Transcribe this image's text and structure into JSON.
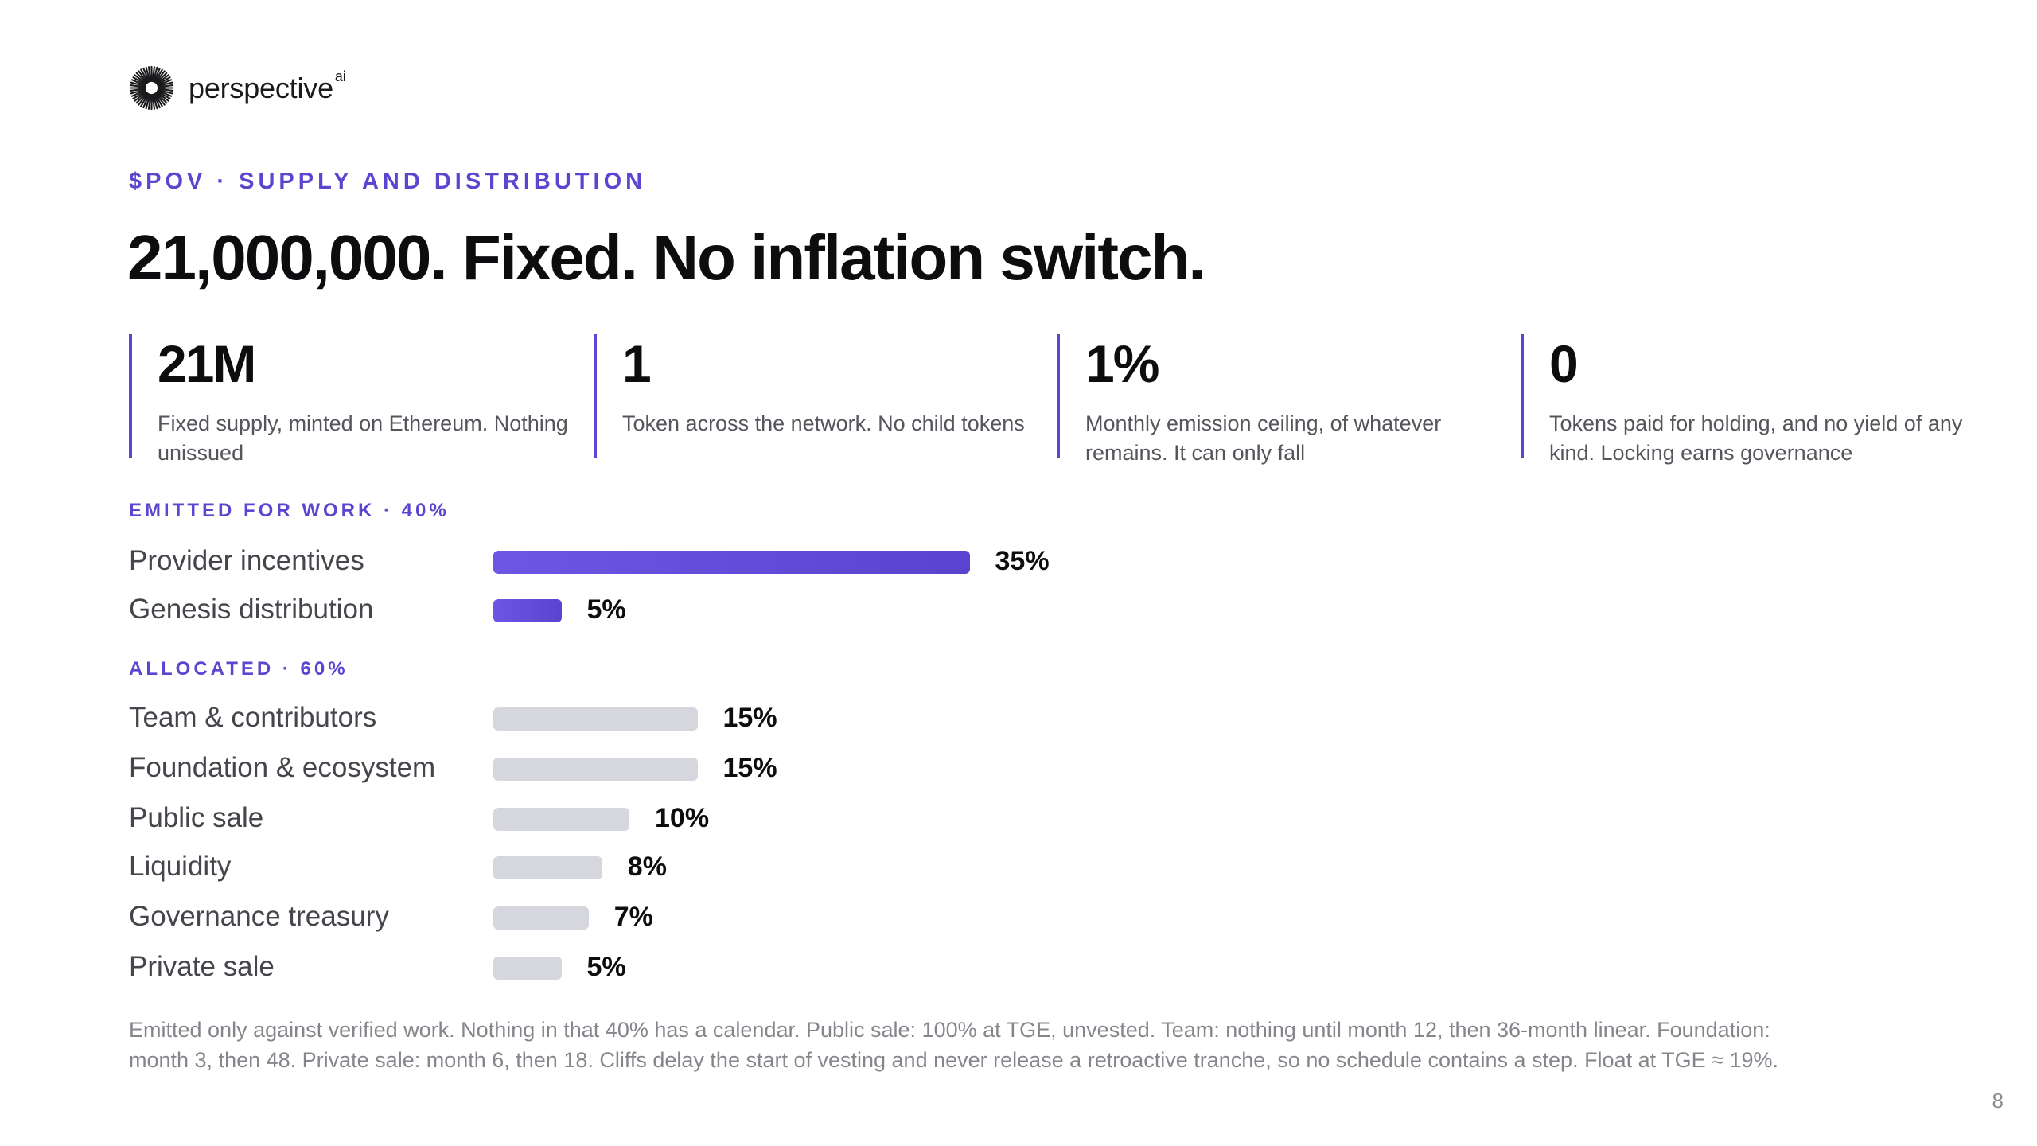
{
  "brand": {
    "name": "perspective",
    "superscript": "ai"
  },
  "eyebrow": "$POV · SUPPLY AND DISTRIBUTION",
  "headline": "21,000,000. Fixed. No inflation switch.",
  "stats": [
    {
      "value": "21M",
      "description": "Fixed supply, minted on Ethereum. Nothing unissued"
    },
    {
      "value": "1",
      "description": "Token across the network. No child tokens"
    },
    {
      "value": "1%",
      "description": "Monthly emission ceiling, of whatever remains. It can only fall"
    },
    {
      "value": "0",
      "description": "Tokens paid for holding, and no yield of any kind. Locking earns governance"
    }
  ],
  "groups": {
    "work": {
      "label": "EMITTED FOR WORK · 40%",
      "items": [
        {
          "label": "Provider incentives",
          "value": "35%",
          "percent": 35
        },
        {
          "label": "Genesis distribution",
          "value": "5%",
          "percent": 5
        }
      ]
    },
    "allocated": {
      "label": "ALLOCATED · 60%",
      "items": [
        {
          "label": "Team & contributors",
          "value": "15%",
          "percent": 15
        },
        {
          "label": "Foundation & ecosystem",
          "value": "15%",
          "percent": 15
        },
        {
          "label": "Public sale",
          "value": "10%",
          "percent": 10
        },
        {
          "label": "Liquidity",
          "value": "8%",
          "percent": 8
        },
        {
          "label": "Governance treasury",
          "value": "7%",
          "percent": 7
        },
        {
          "label": "Private sale",
          "value": "5%",
          "percent": 5
        }
      ]
    }
  },
  "footnote": "Emitted only against verified work. Nothing in that 40% has a calendar. Public sale: 100% at TGE, unvested. Team: nothing until month 12, then 36-month linear. Foundation: month 3, then 48. Private sale: month 6, then 18. Cliffs delay the start of vesting and never release a retroactive tranche, so no schedule contains a step. Float at TGE ≈ 19%.",
  "page_number": "8",
  "colors": {
    "accent": "#5b46d0",
    "bar_allocated": "#d6d6de",
    "text_primary": "#0d0d10",
    "text_secondary": "#55555c",
    "text_muted": "#85858c"
  },
  "icons": {
    "logo": "sunburst-logo-icon"
  }
}
